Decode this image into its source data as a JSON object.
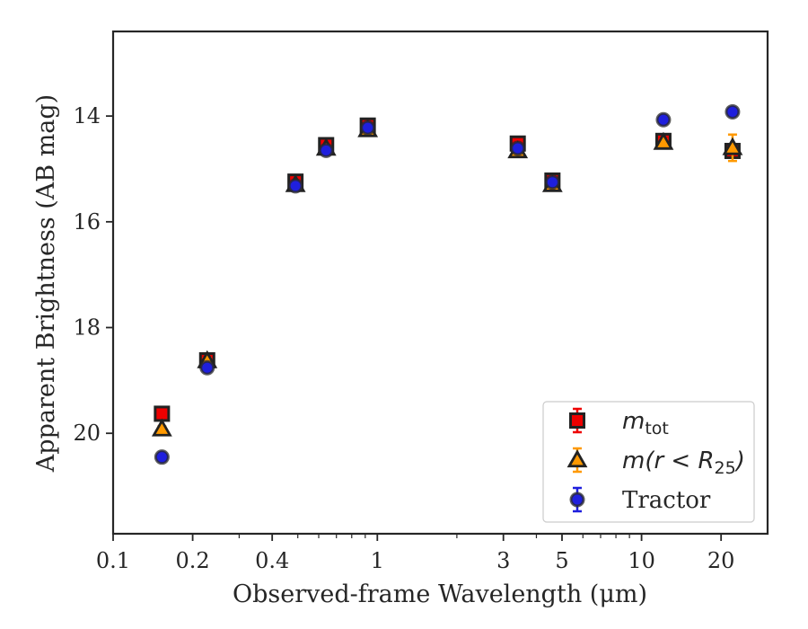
{
  "chart_data": {
    "type": "scatter",
    "title": "",
    "xlabel": "Observed-frame Wavelength (μm)",
    "ylabel": "Apparent Brightness (AB mag)",
    "xscale": "log",
    "xlim": [
      0.1,
      30
    ],
    "ylim": [
      21.9,
      12.4
    ],
    "y_inverted": true,
    "x_ticks": [
      0.1,
      0.2,
      0.4,
      1,
      3,
      5,
      10,
      20
    ],
    "x_tick_labels": [
      "0.1",
      "0.2",
      "0.4",
      "1",
      "3",
      "5",
      "10",
      "20"
    ],
    "y_ticks": [
      14,
      16,
      18,
      20
    ],
    "y_tick_labels": [
      "14",
      "16",
      "18",
      "20"
    ],
    "grid": false,
    "legend_position": "lower-right",
    "series": [
      {
        "name": "m_tot",
        "label_math": "m",
        "label_sub": "tot",
        "marker": "square",
        "color": "#ee0000",
        "x": [
          0.153,
          0.227,
          0.49,
          0.64,
          0.92,
          3.4,
          4.6,
          12.1,
          22.1
        ],
        "y": [
          19.63,
          18.62,
          15.24,
          14.55,
          14.18,
          14.52,
          15.22,
          14.47,
          14.66
        ],
        "yerr": [
          0.05,
          0.05,
          0.03,
          0.03,
          0.03,
          0.03,
          0.03,
          0.05,
          0.1
        ]
      },
      {
        "name": "m(r < R25)",
        "label_math": "m(r < R",
        "label_sub": "25",
        "label_math_end": ")",
        "marker": "triangle",
        "color": "#ff9900",
        "x": [
          0.153,
          0.227,
          0.49,
          0.64,
          0.92,
          3.4,
          4.6,
          12.1,
          22.1
        ],
        "y": [
          19.92,
          18.63,
          15.3,
          14.61,
          14.26,
          14.66,
          15.3,
          14.5,
          14.6
        ],
        "yerr": [
          0.05,
          0.05,
          0.03,
          0.03,
          0.03,
          0.03,
          0.03,
          0.05,
          0.25
        ]
      },
      {
        "name": "Tractor",
        "marker": "circle",
        "color": "#1f1fdd",
        "x": [
          0.153,
          0.227,
          0.49,
          0.64,
          0.92,
          3.4,
          4.6,
          12.1,
          22.1
        ],
        "y": [
          20.45,
          18.76,
          15.32,
          14.65,
          14.22,
          14.61,
          15.25,
          14.07,
          13.92
        ],
        "yerr": [
          0.05,
          0.05,
          0.03,
          0.03,
          0.03,
          0.03,
          0.03,
          0.05,
          0.05
        ]
      }
    ]
  }
}
